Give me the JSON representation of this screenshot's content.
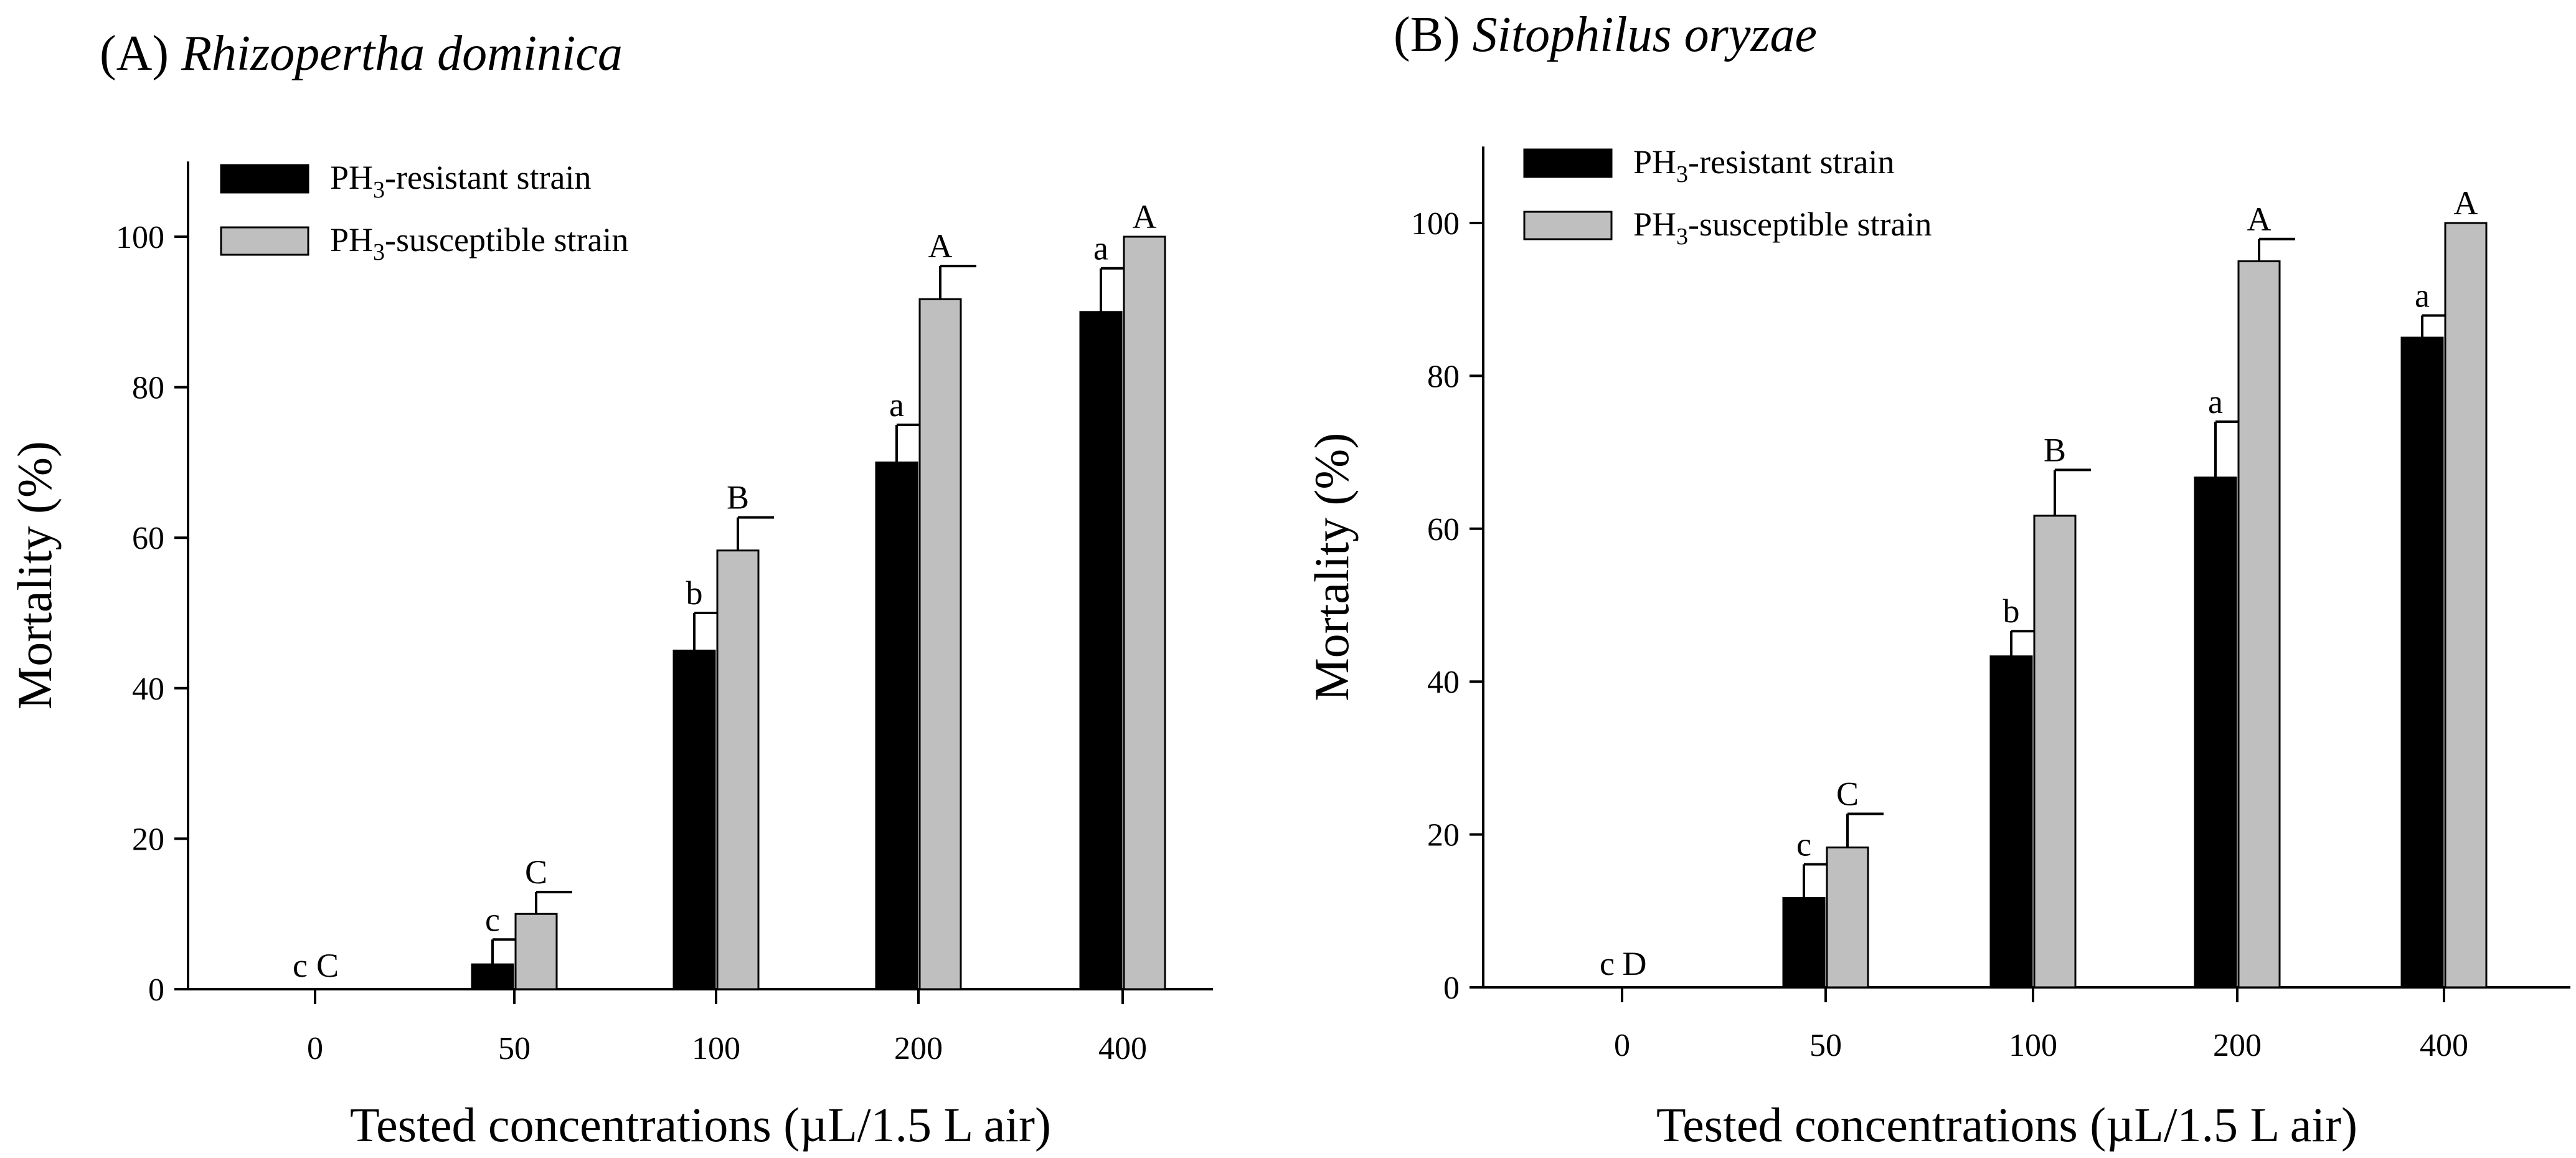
{
  "chart_data": [
    {
      "type": "bar",
      "panel": "(A)",
      "species": "Rhizopertha dominica",
      "xlabel": "Tested concentrations (µL/1.5 L air)",
      "ylabel": "Mortality (%)",
      "ylim": [
        0,
        110
      ],
      "yticks": [
        0,
        20,
        40,
        60,
        80,
        100
      ],
      "categories": [
        "0",
        "50",
        "100",
        "200",
        "400"
      ],
      "series": [
        {
          "name": "PH3-resistant strain",
          "label_main": "PH",
          "label_sub": "3",
          "label_rest": "-resistant strain",
          "color": "#000000",
          "values": [
            0,
            3.3,
            45,
            70,
            90
          ],
          "errors": [
            0,
            3.3,
            5,
            5,
            5.8
          ],
          "letters": [
            "c",
            "c",
            "b",
            "a",
            "a"
          ]
        },
        {
          "name": "PH3-susceptible strain",
          "label_main": "PH",
          "label_sub": "3",
          "label_rest": "-susceptible strain",
          "color": "#bfbfbf",
          "values": [
            0,
            10,
            58.3,
            91.7,
            100
          ],
          "errors": [
            0,
            2.9,
            4.4,
            4.4,
            0
          ],
          "letters": [
            "C",
            "C",
            "B",
            "A",
            "A"
          ]
        }
      ]
    },
    {
      "type": "bar",
      "panel": "(B)",
      "species": "Sitophilus oryzae",
      "xlabel": "Tested concentrations (µL/1.5 L air)",
      "ylabel": "Mortality (%)",
      "ylim": [
        0,
        110
      ],
      "yticks": [
        0,
        20,
        40,
        60,
        80,
        100
      ],
      "categories": [
        "0",
        "50",
        "100",
        "200",
        "400"
      ],
      "series": [
        {
          "name": "PH3-resistant strain",
          "label_main": "PH",
          "label_sub": "3",
          "label_rest": "-resistant strain",
          "color": "#000000",
          "values": [
            0,
            11.7,
            43.3,
            66.7,
            85
          ],
          "errors": [
            0,
            4.4,
            3.3,
            7.3,
            2.9
          ],
          "letters": [
            "c",
            "c",
            "b",
            "a",
            "a"
          ]
        },
        {
          "name": "PH3-susceptible strain",
          "label_main": "PH",
          "label_sub": "3",
          "label_rest": "-susceptible strain",
          "color": "#bfbfbf",
          "values": [
            0,
            18.3,
            61.7,
            95,
            100
          ],
          "errors": [
            0,
            4.4,
            6,
            2.9,
            0
          ],
          "letters": [
            "D",
            "C",
            "B",
            "A",
            "A"
          ]
        }
      ]
    }
  ]
}
